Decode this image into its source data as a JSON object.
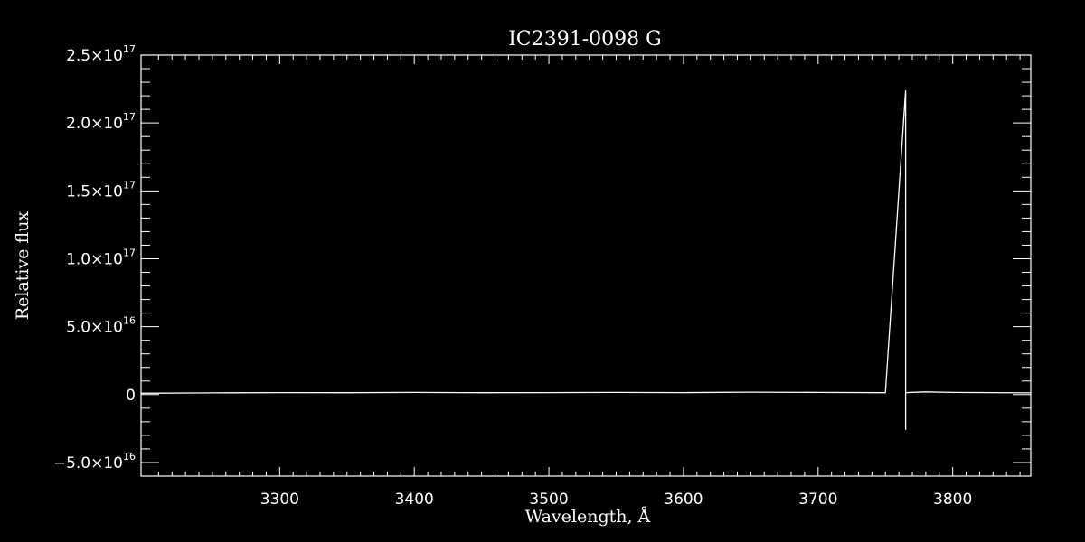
{
  "chart_data": {
    "type": "line",
    "title": "IC2391-0098  G",
    "xlabel": "Wavelength, Å",
    "ylabel": "Relative flux",
    "xlim": [
      3197,
      3858
    ],
    "ylim": [
      -6e+16,
      2.5e+17
    ],
    "x_ticks": [
      {
        "value": 3300,
        "label": "3300"
      },
      {
        "value": 3400,
        "label": "3400"
      },
      {
        "value": 3500,
        "label": "3500"
      },
      {
        "value": 3600,
        "label": "3600"
      },
      {
        "value": 3700,
        "label": "3700"
      },
      {
        "value": 3800,
        "label": "3800"
      }
    ],
    "y_ticks": [
      {
        "value": -5e+16,
        "mantissa": "−5.0×10",
        "exponent": "16"
      },
      {
        "value": 0,
        "mantissa": "0",
        "exponent": ""
      },
      {
        "value": 5e+16,
        "mantissa": "5.0×10",
        "exponent": "16"
      },
      {
        "value": 1e+17,
        "mantissa": "1.0×10",
        "exponent": "17"
      },
      {
        "value": 1.5e+17,
        "mantissa": "1.5×10",
        "exponent": "17"
      },
      {
        "value": 2e+17,
        "mantissa": "2.0×10",
        "exponent": "17"
      },
      {
        "value": 2.5e+17,
        "mantissa": "2.5×10",
        "exponent": "17"
      }
    ],
    "series": [
      {
        "x": [
          3197,
          3250,
          3300,
          3350,
          3400,
          3450,
          3500,
          3550,
          3600,
          3650,
          3700,
          3750,
          3765,
          3765,
          3765,
          3780,
          3800,
          3858
        ],
        "y": [
          1000000000000000.0,
          1300000000000000.0,
          1500000000000000.0,
          1400000000000000.0,
          1600000000000000.0,
          1400000000000000.0,
          1500000000000000.0,
          1600000000000000.0,
          1500000000000000.0,
          1800000000000000.0,
          1600000000000000.0,
          1400000000000000.0,
          2.24e+17,
          -2.6e+16,
          1500000000000000.0,
          2000000000000000.0,
          1600000000000000.0,
          1300000000000000.0
        ]
      }
    ],
    "grid": false,
    "legend": "none",
    "colors": {
      "background": "#000000",
      "foreground": "#ffffff"
    }
  }
}
